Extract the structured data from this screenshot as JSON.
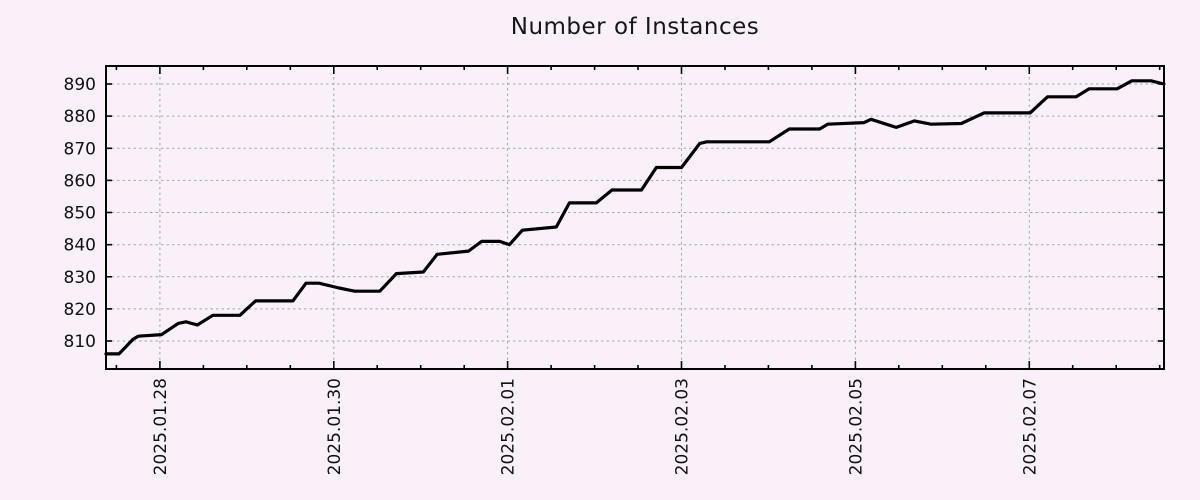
{
  "colors": {
    "background": "#faf0fa",
    "line": "#000000",
    "grid": "#a8a8a8",
    "foreground": "#000000"
  },
  "chart_data": {
    "type": "line",
    "title": "Number of Instances",
    "legend": "none",
    "grid": "dashed",
    "x_axis": {
      "unit": "days since 2025.01.28 00:00",
      "tick_labels": [
        "2025.01.28",
        "2025.01.30",
        "2025.02.01",
        "2025.02.03",
        "2025.02.05",
        "2025.02.07"
      ],
      "tick_days": [
        0,
        2,
        4,
        6,
        8,
        10
      ],
      "minor_tick_interval_days": 0.5,
      "domain_days": [
        -0.62,
        11.55
      ]
    },
    "y_axis": {
      "ticks": [
        810,
        820,
        830,
        840,
        850,
        860,
        870,
        880,
        890
      ],
      "domain": [
        801.3,
        895.6
      ]
    },
    "series": [
      {
        "name": "instances",
        "points": [
          [
            -0.62,
            806
          ],
          [
            -0.47,
            806
          ],
          [
            -0.31,
            810.5
          ],
          [
            -0.25,
            811.5
          ],
          [
            0.02,
            812
          ],
          [
            0.21,
            815.5
          ],
          [
            0.3,
            816
          ],
          [
            0.43,
            815
          ],
          [
            0.61,
            818
          ],
          [
            0.92,
            818
          ],
          [
            1.1,
            822.5
          ],
          [
            1.53,
            822.5
          ],
          [
            1.68,
            828
          ],
          [
            1.83,
            828
          ],
          [
            2.06,
            826.5
          ],
          [
            2.24,
            825.5
          ],
          [
            2.53,
            825.5
          ],
          [
            2.72,
            831
          ],
          [
            3.03,
            831.5
          ],
          [
            3.19,
            837
          ],
          [
            3.55,
            838
          ],
          [
            3.7,
            841
          ],
          [
            3.91,
            841
          ],
          [
            4.02,
            840
          ],
          [
            4.17,
            844.5
          ],
          [
            4.56,
            845.5
          ],
          [
            4.71,
            853
          ],
          [
            5.02,
            853
          ],
          [
            5.2,
            857
          ],
          [
            5.54,
            857
          ],
          [
            5.71,
            864
          ],
          [
            6.0,
            864
          ],
          [
            6.21,
            871.5
          ],
          [
            6.29,
            872
          ],
          [
            7.01,
            872
          ],
          [
            7.24,
            876
          ],
          [
            7.59,
            876
          ],
          [
            7.68,
            877.5
          ],
          [
            8.1,
            878
          ],
          [
            8.18,
            879
          ],
          [
            8.47,
            876.5
          ],
          [
            8.68,
            878.5
          ],
          [
            8.87,
            877.5
          ],
          [
            9.22,
            877.7
          ],
          [
            9.48,
            881
          ],
          [
            10.01,
            881
          ],
          [
            10.21,
            886
          ],
          [
            10.54,
            886
          ],
          [
            10.69,
            888.5
          ],
          [
            11.01,
            888.5
          ],
          [
            11.18,
            891
          ],
          [
            11.4,
            891
          ],
          [
            11.55,
            890
          ]
        ]
      }
    ]
  }
}
